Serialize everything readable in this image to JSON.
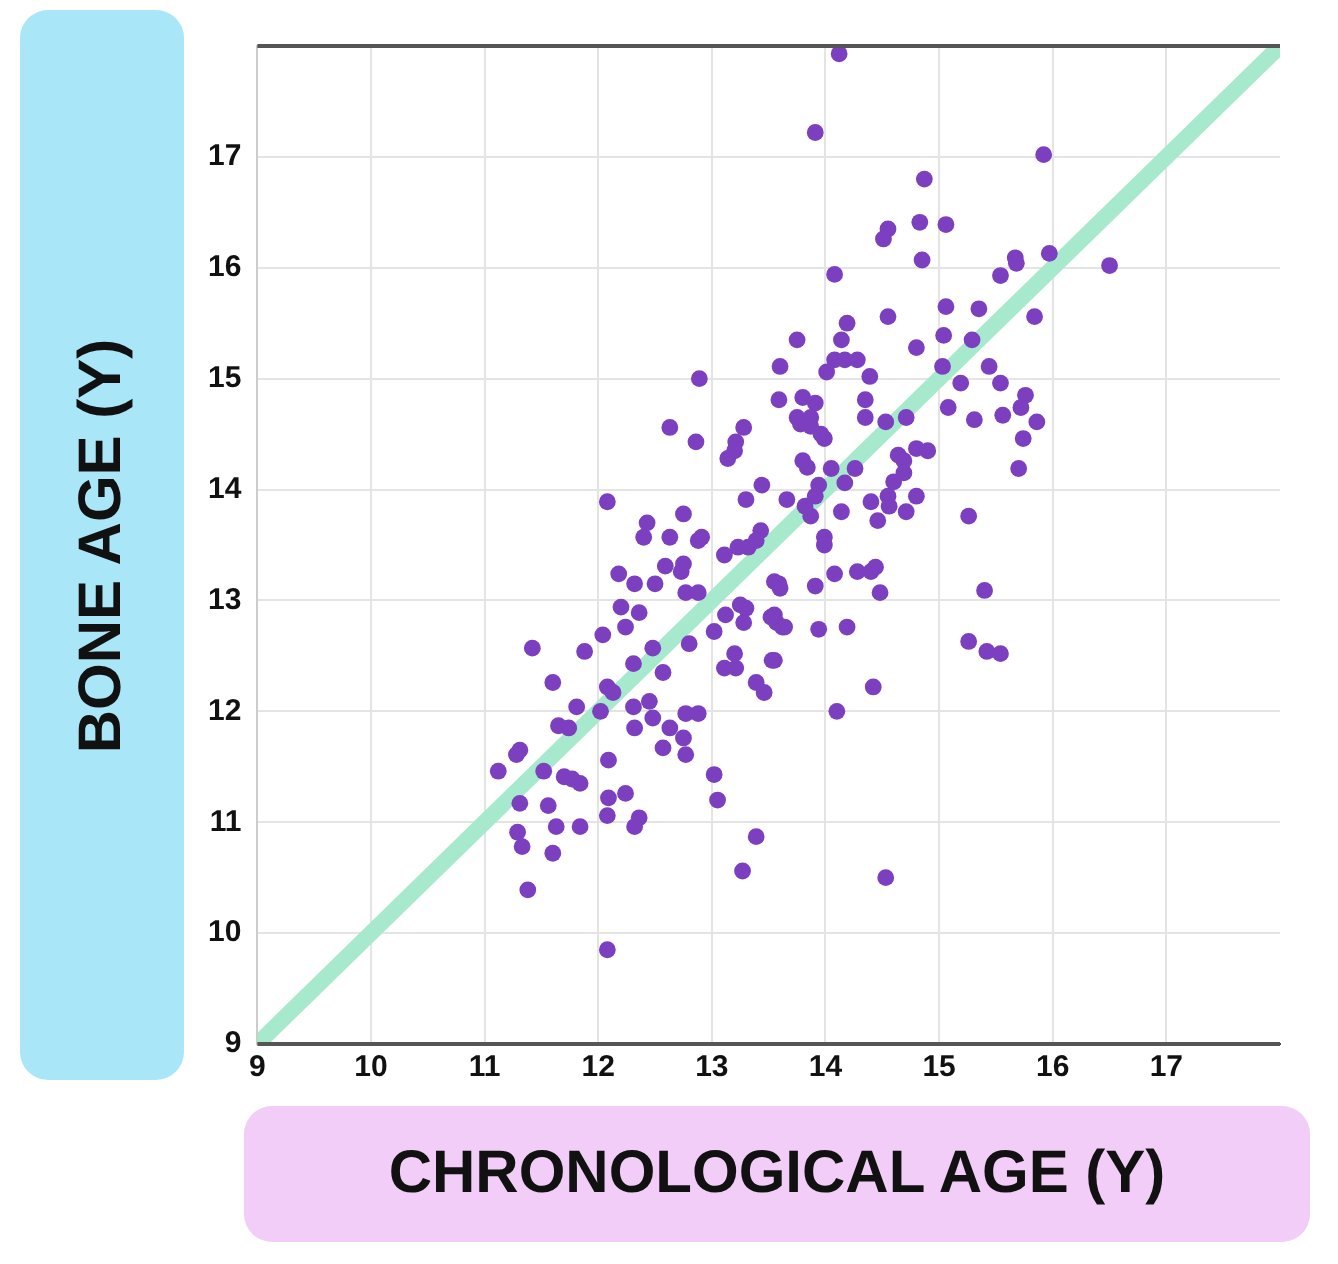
{
  "chart_data": {
    "type": "scatter",
    "xlabel": "CHRONOLOGICAL AGE (Y)",
    "ylabel": "BONE AGE (Y)",
    "xlim": [
      9,
      18
    ],
    "ylim": [
      9,
      18
    ],
    "xticks": [
      9,
      10,
      11,
      12,
      13,
      14,
      15,
      16,
      17
    ],
    "yticks": [
      9,
      10,
      11,
      12,
      13,
      14,
      15,
      16,
      17
    ],
    "grid": true,
    "legend": false,
    "marker": "circle",
    "series": [
      {
        "type": "line",
        "color": "#a6e9cc",
        "marker": "none",
        "x": [
          9,
          18
        ],
        "values": [
          9,
          18
        ]
      },
      {
        "color": "#7b3fc0",
        "x": [
          14.12,
          13.91,
          15.92,
          14.87,
          14.55,
          14.51,
          14.83,
          15.06,
          14.85,
          14.08,
          15.67,
          15.68,
          15.97,
          16.5,
          15.54,
          15.06,
          15.35,
          14.55,
          14.19,
          15.84,
          13.75,
          14.14,
          15.04,
          15.29,
          14.8,
          13.6,
          14.08,
          14.17,
          14.28,
          15.03,
          15.44,
          14.01,
          14.39,
          15.54,
          15.19,
          15.76,
          15.72,
          15.86,
          15.08,
          15.31,
          15.56,
          13.59,
          13.8,
          13.91,
          13.75,
          13.87,
          13.78,
          13.87,
          14.35,
          14.35,
          14.53,
          14.71,
          13.96,
          13.99,
          15.74,
          14.8,
          14.9,
          14.64,
          13.8,
          13.84,
          14.05,
          14.26,
          14.69,
          14.69,
          15.7,
          14.6,
          14.17,
          13.94,
          13.66,
          13.91,
          14.55,
          14.8,
          14.4,
          14.56,
          14.14,
          14.71,
          13.87,
          14.46,
          15.26,
          13.99,
          13.99,
          14.08,
          14.28,
          14.4,
          14.44,
          13.91,
          14.48,
          15.4,
          13.59,
          13.55,
          13.57,
          13.62,
          13.94,
          14.19,
          15.26,
          15.42,
          15.54,
          13.55,
          14.42,
          14.1,
          14.53,
          12.89,
          12.63,
          12.86,
          13.28,
          13.21,
          13.2,
          13.14,
          12.08,
          13.44,
          13.3,
          12.43,
          12.75,
          12.4,
          12.63,
          12.91,
          12.88,
          13.43,
          13.39,
          13.32,
          13.23,
          13.11,
          12.18,
          12.32,
          12.5,
          12.59,
          12.75,
          12.73,
          12.77,
          12.88,
          13.55,
          13.6,
          13.82,
          12.2,
          12.36,
          12.24,
          12.04,
          11.42,
          11.88,
          12.48,
          12.8,
          13.02,
          13.12,
          13.25,
          13.3,
          13.28,
          13.52,
          13.64,
          13.2,
          13.53,
          13.11,
          13.21,
          13.39,
          13.46,
          11.6,
          12.08,
          12.31,
          12.57,
          12.45,
          12.31,
          12.48,
          12.63,
          11.81,
          11.65,
          11.74,
          12.32,
          12.75,
          12.77,
          12.77,
          12.88,
          12.02,
          12.13,
          11.31,
          11.28,
          12.57,
          12.09,
          11.12,
          11.52,
          11.7,
          11.77,
          11.84,
          13.02,
          13.05,
          12.09,
          12.24,
          11.31,
          11.56,
          12.08,
          12.36,
          12.32,
          11.29,
          11.33,
          11.63,
          11.84,
          11.6,
          13.39,
          13.27,
          11.38,
          12.08
        ],
        "values": [
          17.93,
          17.22,
          17.02,
          16.8,
          16.35,
          16.26,
          16.41,
          16.39,
          16.07,
          15.94,
          16.09,
          16.04,
          16.13,
          16.02,
          15.93,
          15.65,
          15.63,
          15.56,
          15.5,
          15.56,
          15.35,
          15.35,
          15.39,
          15.35,
          15.28,
          15.11,
          15.17,
          15.17,
          15.17,
          15.11,
          15.11,
          15.06,
          15.02,
          14.96,
          14.96,
          14.85,
          14.74,
          14.61,
          14.74,
          14.63,
          14.67,
          14.81,
          14.83,
          14.78,
          14.65,
          14.65,
          14.59,
          14.57,
          14.81,
          14.65,
          14.61,
          14.65,
          14.5,
          14.46,
          14.46,
          14.37,
          14.35,
          14.31,
          14.26,
          14.2,
          14.19,
          14.19,
          14.26,
          14.15,
          14.19,
          14.07,
          14.06,
          14.04,
          13.91,
          13.94,
          13.94,
          13.94,
          13.89,
          13.85,
          13.8,
          13.8,
          13.76,
          13.72,
          13.76,
          13.57,
          13.5,
          13.24,
          13.26,
          13.26,
          13.3,
          13.13,
          13.07,
          13.09,
          13.15,
          12.87,
          12.8,
          12.76,
          12.74,
          12.76,
          12.63,
          12.54,
          12.52,
          12.46,
          12.22,
          12.0,
          10.5,
          15.0,
          14.56,
          14.43,
          14.56,
          14.43,
          14.35,
          14.28,
          13.89,
          14.04,
          13.91,
          13.7,
          13.78,
          13.57,
          13.57,
          13.57,
          13.54,
          13.63,
          13.54,
          13.48,
          13.48,
          13.41,
          13.24,
          13.15,
          13.15,
          13.31,
          13.33,
          13.26,
          13.07,
          13.07,
          13.17,
          13.11,
          13.85,
          12.94,
          12.89,
          12.76,
          12.69,
          12.57,
          12.54,
          12.57,
          12.61,
          12.72,
          12.87,
          12.96,
          12.93,
          12.8,
          12.85,
          12.76,
          12.52,
          12.46,
          12.39,
          12.39,
          12.26,
          12.17,
          12.26,
          12.22,
          12.43,
          12.35,
          12.09,
          12.04,
          11.94,
          11.85,
          12.04,
          11.87,
          11.85,
          11.85,
          11.76,
          11.61,
          11.98,
          11.98,
          12.0,
          12.17,
          11.65,
          11.61,
          11.67,
          11.56,
          11.46,
          11.46,
          11.41,
          11.39,
          11.35,
          11.43,
          11.2,
          11.22,
          11.26,
          11.17,
          11.15,
          11.06,
          11.04,
          10.96,
          10.91,
          10.78,
          10.96,
          10.96,
          10.72,
          10.87,
          10.56,
          10.39,
          9.85
        ]
      }
    ]
  }
}
